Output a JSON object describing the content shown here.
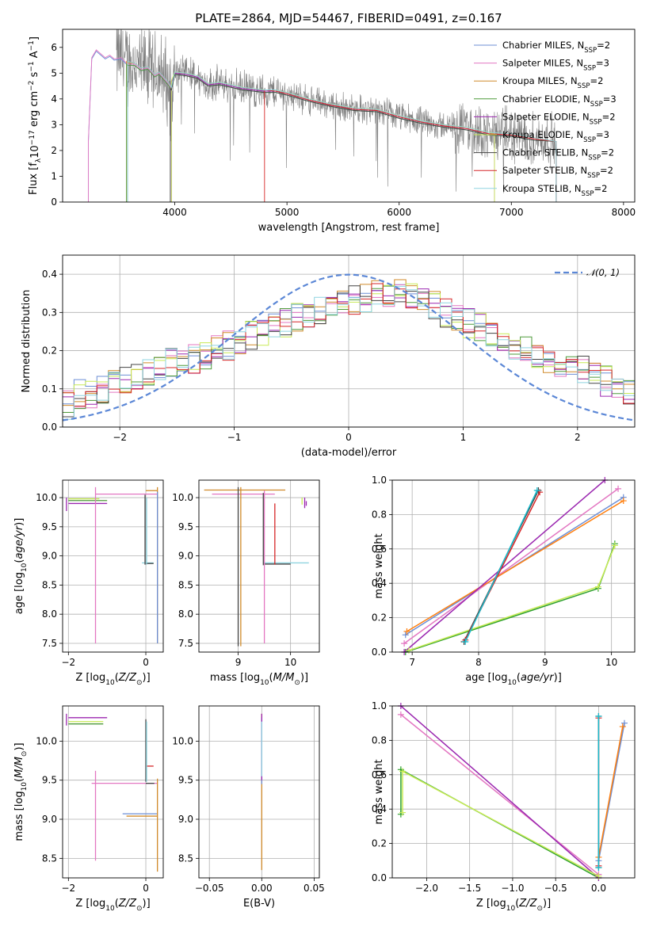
{
  "figure_title": "PLATE=2864, MJD=54467, FIBERID=0491, z=0.167",
  "colors": {
    "chabrier_miles": "#6d8fd6",
    "salpeter_miles": "#e377c2",
    "kroupa_miles": "#d08a2a",
    "chabrier_elodie": "#4e9a3a",
    "salpeter_elodie": "#9b27b0",
    "kroupa_elodie": "#c8ea56",
    "chabrier_stelib": "#444444",
    "salpeter_stelib": "#d62728",
    "kroupa_stelib": "#8fd4e0",
    "normal": "#5b87d6",
    "data": "#7f7f7f",
    "orange": "#ff7f0e",
    "cyan": "#17becf",
    "green": "#2ca02c"
  },
  "legend_spectrum": [
    {
      "label": "Chabrier MILES, N",
      "sub": "SSP",
      "suffix": "=2",
      "color": "#6d8fd6"
    },
    {
      "label": "Salpeter MILES, N",
      "sub": "SSP",
      "suffix": "=3",
      "color": "#e377c2"
    },
    {
      "label": "Kroupa MILES, N",
      "sub": "SSP",
      "suffix": "=2",
      "color": "#d08a2a"
    },
    {
      "label": "Chabrier ELODIE, N",
      "sub": "SSP",
      "suffix": "=3",
      "color": "#4e9a3a"
    },
    {
      "label": "Salpeter ELODIE, N",
      "sub": "SSP",
      "suffix": "=2",
      "color": "#9b27b0"
    },
    {
      "label": "Kroupa ELODIE, N",
      "sub": "SSP",
      "suffix": "=3",
      "color": "#c8ea56"
    },
    {
      "label": "Chabrier STELIB, N",
      "sub": "SSP",
      "suffix": "=2",
      "color": "#444444"
    },
    {
      "label": "Salpeter STELIB, N",
      "sub": "SSP",
      "suffix": "=2",
      "color": "#d62728"
    },
    {
      "label": "Kroupa STELIB, N",
      "sub": "SSP",
      "suffix": "=2",
      "color": "#8fd4e0"
    }
  ],
  "legend_hist": {
    "label": "𝒩(0, 1)"
  },
  "chart_data": [
    {
      "id": "spectrum",
      "type": "line",
      "title": "PLATE=2864, MJD=54467, FIBERID=0491, z=0.167",
      "xlabel": "wavelength [Angstrom, rest frame]",
      "ylabel": "Flux [f_λ 10^-17 erg cm^-2 s^-1 A^-1]",
      "xlim": [
        3000,
        8100
      ],
      "ylim": [
        0,
        6.7
      ],
      "xticks": [
        4000,
        5000,
        6000,
        7000,
        8000
      ],
      "yticks": [
        0,
        1,
        2,
        3,
        4,
        5,
        6
      ],
      "model_curve": {
        "x": [
          3260,
          3300,
          3340,
          3380,
          3420,
          3460,
          3520,
          3580,
          3640,
          3700,
          3760,
          3820,
          3860,
          3900,
          3940,
          3970,
          4000,
          4100,
          4200,
          4300,
          4400,
          4500,
          4600,
          4700,
          4800,
          4900,
          5000,
          5200,
          5400,
          5600,
          5800,
          6000,
          6200,
          6400,
          6600,
          6800,
          7000,
          7200,
          7400
        ],
        "y": [
          5.6,
          5.9,
          5.75,
          5.6,
          5.7,
          5.55,
          5.6,
          5.35,
          5.35,
          5.15,
          5.2,
          4.9,
          5.0,
          4.8,
          4.6,
          4.4,
          5.0,
          4.95,
          4.85,
          4.55,
          4.6,
          4.5,
          4.4,
          4.35,
          4.3,
          4.3,
          4.2,
          3.95,
          3.75,
          3.6,
          3.55,
          3.3,
          3.1,
          2.95,
          2.85,
          2.65,
          2.6,
          2.45,
          2.35
        ]
      },
      "model_starts": [
        3230,
        3230,
        3570,
        3570,
        3970,
        3970,
        3960,
        4800,
        3580
      ],
      "model_ends": [
        7400,
        7400,
        7400,
        7400,
        6850,
        6850,
        7400,
        7400,
        7400
      ]
    },
    {
      "id": "residuals",
      "type": "histogram",
      "xlabel": "(data-model)/error",
      "ylabel": "Normed distribution",
      "xlim": [
        -2.5,
        2.5
      ],
      "ylim": [
        0,
        0.45
      ],
      "xticks": [
        -2,
        -1,
        0,
        1,
        2
      ],
      "yticks": [
        0.0,
        0.1,
        0.2,
        0.3,
        0.4
      ],
      "series_names": [
        "Chabrier MILES",
        "Salpeter MILES",
        "Kroupa MILES",
        "Chabrier ELODIE",
        "Salpeter ELODIE",
        "Kroupa ELODIE",
        "Chabrier STELIB",
        "Salpeter STELIB",
        "Kroupa STELIB"
      ],
      "bin_edges_start": -2.5,
      "bin_width": 0.1,
      "base_heights": [
        0.06,
        0.085,
        0.09,
        0.1,
        0.11,
        0.12,
        0.125,
        0.14,
        0.15,
        0.17,
        0.175,
        0.18,
        0.19,
        0.205,
        0.215,
        0.23,
        0.24,
        0.25,
        0.26,
        0.27,
        0.29,
        0.3,
        0.31,
        0.32,
        0.325,
        0.33,
        0.34,
        0.35,
        0.355,
        0.36,
        0.345,
        0.33,
        0.32,
        0.3,
        0.28,
        0.27,
        0.26,
        0.245,
        0.23,
        0.215,
        0.2,
        0.19,
        0.18,
        0.17,
        0.16,
        0.15,
        0.13,
        0.12,
        0.1,
        0.085,
        0.07
      ],
      "normal_curve": {
        "mean": 0,
        "sigma": 1
      }
    },
    {
      "id": "age_vs_Z",
      "type": "scatter",
      "xlabel": "Z [log10(Z/Z⊙)]",
      "ylabel": "age [log10(age/yr)]",
      "xlim": [
        -2.15,
        0.45
      ],
      "ylim": [
        7.35,
        10.3
      ],
      "xticks": [
        -2,
        0
      ],
      "yticks": [
        7.5,
        8.0,
        8.5,
        9.0,
        9.5,
        10.0
      ],
      "hlines": [
        {
          "y": 10.12,
          "x1": 0.0,
          "x2": 0.3,
          "color": "#d08a2a"
        },
        {
          "y": 10.06,
          "x1": -1.3,
          "x2": 0.3,
          "color": "#e377c2"
        },
        {
          "y": 9.98,
          "x1": -2.0,
          "x2": -1.2,
          "color": "#c8ea56"
        },
        {
          "y": 9.95,
          "x1": -2.0,
          "x2": -1.0,
          "color": "#4e9a3a"
        },
        {
          "y": 9.9,
          "x1": -2.0,
          "x2": -1.0,
          "color": "#9b27b0"
        },
        {
          "y": 8.88,
          "x1": -0.1,
          "x2": 0.2,
          "color": "#8fd4e0"
        },
        {
          "y": 8.87,
          "x1": 0.0,
          "x2": 0.2,
          "color": "#444444"
        }
      ],
      "vlines": [
        {
          "x": -1.3,
          "y1": 7.5,
          "y2": 10.18,
          "color": "#e377c2"
        },
        {
          "x": 0.3,
          "y1": 7.5,
          "y2": 10.18,
          "color": "#d08a2a"
        },
        {
          "x": 0.3,
          "y1": 7.5,
          "y2": 10.1,
          "color": "#6d8fd6"
        },
        {
          "x": -0.02,
          "y1": 8.85,
          "y2": 10.05,
          "color": "#444444"
        },
        {
          "x": 0.02,
          "y1": 8.85,
          "y2": 10.0,
          "color": "#8fd4e0"
        },
        {
          "x": -2.05,
          "y1": 9.77,
          "y2": 10.0,
          "color": "#9b27b0"
        }
      ]
    },
    {
      "id": "age_vs_mass",
      "type": "scatter",
      "xlabel": "mass [log10(M/M⊙)]",
      "ylabel": "",
      "xlim": [
        8.25,
        10.55
      ],
      "ylim": [
        7.35,
        10.3
      ],
      "xticks": [
        9,
        10
      ],
      "yticks": [
        7.5,
        8.0,
        8.5,
        9.0,
        9.5,
        10.0
      ],
      "hlines": [
        {
          "y": 10.13,
          "x1": 8.35,
          "x2": 9.9,
          "color": "#d08a2a"
        },
        {
          "y": 10.06,
          "x1": 8.5,
          "x2": 9.7,
          "color": "#e377c2"
        },
        {
          "y": 8.88,
          "x1": 9.48,
          "x2": 10.35,
          "color": "#8fd4e0"
        },
        {
          "y": 8.86,
          "x1": 9.48,
          "x2": 10.0,
          "color": "#444444"
        }
      ],
      "vlines": [
        {
          "x": 9.05,
          "y1": 7.45,
          "y2": 10.18,
          "color": "#d08a2a"
        },
        {
          "x": 9.0,
          "y1": 7.45,
          "y2": 10.18,
          "color": "#444444"
        },
        {
          "x": 9.5,
          "y1": 7.5,
          "y2": 10.12,
          "color": "#e377c2"
        },
        {
          "x": 9.7,
          "y1": 8.85,
          "y2": 9.9,
          "color": "#d62728"
        },
        {
          "x": 9.48,
          "y1": 8.84,
          "y2": 10.08,
          "color": "#444444"
        },
        {
          "x": 10.27,
          "y1": 9.82,
          "y2": 10.0,
          "color": "#9b27b0"
        },
        {
          "x": 10.22,
          "y1": 9.88,
          "y2": 10.0,
          "color": "#c8ea56"
        },
        {
          "x": 10.3,
          "y1": 9.86,
          "y2": 9.94,
          "color": "#9b27b0"
        }
      ]
    },
    {
      "id": "weight_vs_age",
      "type": "line",
      "xlabel": "age [log10(age/yr)]",
      "ylabel": "mass weight",
      "xlim": [
        6.7,
        10.35
      ],
      "ylim": [
        0,
        1.0
      ],
      "xticks": [
        7,
        8,
        9,
        10
      ],
      "yticks": [
        0.0,
        0.2,
        0.4,
        0.6,
        0.8,
        1.0
      ],
      "series": [
        {
          "name": "Chabrier MILES",
          "color": "#6d8fd6",
          "x": [
            6.9,
            10.18
          ],
          "y": [
            0.1,
            0.9
          ]
        },
        {
          "name": "Salpeter MILES",
          "color": "#e377c2",
          "x": [
            6.88,
            10.1
          ],
          "y": [
            0.05,
            0.95
          ]
        },
        {
          "name": "Kroupa MILES",
          "color": "#ff7f0e",
          "x": [
            6.92,
            10.18
          ],
          "y": [
            0.12,
            0.88
          ]
        },
        {
          "name": "Chabrier ELODIE",
          "color": "#2ca02c",
          "x": [
            6.9,
            9.8,
            10.05
          ],
          "y": [
            0.0,
            0.37,
            0.63
          ]
        },
        {
          "name": "Salpeter ELODIE",
          "color": "#9b27b0",
          "x": [
            6.88,
            9.9
          ],
          "y": [
            0.0,
            1.0
          ]
        },
        {
          "name": "Kroupa ELODIE",
          "color": "#c8ea56",
          "x": [
            6.95,
            9.8,
            10.05
          ],
          "y": [
            0.01,
            0.38,
            0.62
          ]
        },
        {
          "name": "Chabrier STELIB",
          "color": "#444444",
          "x": [
            7.78,
            8.9
          ],
          "y": [
            0.06,
            0.94
          ]
        },
        {
          "name": "Salpeter STELIB",
          "color": "#d62728",
          "x": [
            7.8,
            8.92
          ],
          "y": [
            0.07,
            0.93
          ]
        },
        {
          "name": "Kroupa STELIB",
          "color": "#17becf",
          "x": [
            7.8,
            8.88
          ],
          "y": [
            0.06,
            0.94
          ]
        }
      ]
    },
    {
      "id": "mass_vs_Z",
      "type": "scatter",
      "xlabel": "Z [log10(Z/Z⊙)]",
      "ylabel": "mass [log10(M/M⊙)]",
      "xlim": [
        -2.15,
        0.45
      ],
      "ylim": [
        8.25,
        10.45
      ],
      "xticks": [
        -2,
        0
      ],
      "yticks": [
        8.5,
        9.0,
        9.5,
        10.0
      ],
      "hlines": [
        {
          "y": 10.3,
          "x1": -2.0,
          "x2": -1.0,
          "color": "#9b27b0"
        },
        {
          "y": 10.25,
          "x1": -2.0,
          "x2": -1.1,
          "color": "#c8ea56"
        },
        {
          "y": 10.22,
          "x1": -2.0,
          "x2": -1.1,
          "color": "#4e9a3a"
        },
        {
          "y": 9.68,
          "x1": 0.0,
          "x2": 0.2,
          "color": "#d62728"
        },
        {
          "y": 9.46,
          "x1": -1.4,
          "x2": 0.3,
          "color": "#e377c2"
        },
        {
          "y": 9.46,
          "x1": 0.0,
          "x2": 0.22,
          "color": "#444444"
        },
        {
          "y": 9.07,
          "x1": -0.6,
          "x2": 0.3,
          "color": "#6d8fd6"
        },
        {
          "y": 9.04,
          "x1": -0.5,
          "x2": 0.3,
          "color": "#d08a2a"
        }
      ],
      "vlines": [
        {
          "x": -1.3,
          "y1": 8.47,
          "y2": 9.62,
          "color": "#e377c2"
        },
        {
          "x": 0.3,
          "y1": 8.33,
          "y2": 9.52,
          "color": "#d08a2a"
        },
        {
          "x": 0.0,
          "y1": 9.48,
          "y2": 10.28,
          "color": "#444444"
        },
        {
          "x": 0.02,
          "y1": 9.48,
          "y2": 10.25,
          "color": "#8fd4e0"
        },
        {
          "x": -2.05,
          "y1": 10.2,
          "y2": 10.35,
          "color": "#9b27b0"
        }
      ]
    },
    {
      "id": "mass_vs_ebv",
      "type": "scatter",
      "xlabel": "E(B-V)",
      "ylabel": "",
      "xlim": [
        -0.06,
        0.055
      ],
      "ylim": [
        8.25,
        10.45
      ],
      "xticks": [
        -0.05,
        0.0,
        0.05
      ],
      "yticks": [
        8.5,
        9.0,
        9.5,
        10.0
      ],
      "vlines": [
        {
          "x": 0.0,
          "y1": 8.35,
          "y2": 10.35,
          "color": "#d08a2a"
        },
        {
          "x": 0.0,
          "y1": 9.45,
          "y2": 10.3,
          "color": "#6d8fd6"
        },
        {
          "x": 0.0,
          "y1": 9.5,
          "y2": 10.35,
          "color": "#9b27b0"
        },
        {
          "x": 0.0,
          "y1": 9.55,
          "y2": 10.25,
          "color": "#8fd4e0"
        }
      ],
      "hlines": []
    },
    {
      "id": "weight_vs_Z",
      "type": "line",
      "xlabel": "Z [log10(Z/Z⊙)]",
      "ylabel": "mass weight",
      "xlim": [
        -2.4,
        0.42
      ],
      "ylim": [
        0,
        1.0
      ],
      "xticks": [
        -2.0,
        -1.5,
        -1.0,
        -0.5,
        0.0
      ],
      "yticks": [
        0.0,
        0.2,
        0.4,
        0.6,
        0.8,
        1.0
      ],
      "series": [
        {
          "name": "Chabrier MILES",
          "color": "#6d8fd6",
          "x": [
            0.0,
            0.3
          ],
          "y": [
            0.1,
            0.9
          ]
        },
        {
          "name": "Salpeter MILES",
          "color": "#e377c2",
          "x": [
            -2.3,
            0.0
          ],
          "y": [
            0.95,
            0.02
          ]
        },
        {
          "name": "Kroupa MILES",
          "color": "#ff7f0e",
          "x": [
            0.0,
            0.28
          ],
          "y": [
            0.12,
            0.88
          ]
        },
        {
          "name": "Chabrier ELODIE",
          "color": "#2ca02c",
          "x": [
            -2.3,
            -2.3,
            0.0
          ],
          "y": [
            0.37,
            0.63,
            0.0
          ]
        },
        {
          "name": "Salpeter ELODIE",
          "color": "#9b27b0",
          "x": [
            -2.3,
            0.0
          ],
          "y": [
            1.0,
            0.0
          ]
        },
        {
          "name": "Kroupa ELODIE",
          "color": "#c8ea56",
          "x": [
            -2.28,
            -2.28,
            0.0
          ],
          "y": [
            0.38,
            0.62,
            0.01
          ]
        },
        {
          "name": "Chabrier STELIB",
          "color": "#444444",
          "x": [
            0.0,
            0.0
          ],
          "y": [
            0.06,
            0.94
          ]
        },
        {
          "name": "Salpeter STELIB",
          "color": "#d62728",
          "x": [
            0.0,
            0.0
          ],
          "y": [
            0.07,
            0.93
          ]
        },
        {
          "name": "Kroupa STELIB",
          "color": "#17becf",
          "x": [
            0.0,
            0.0
          ],
          "y": [
            0.06,
            0.94
          ]
        }
      ]
    }
  ]
}
